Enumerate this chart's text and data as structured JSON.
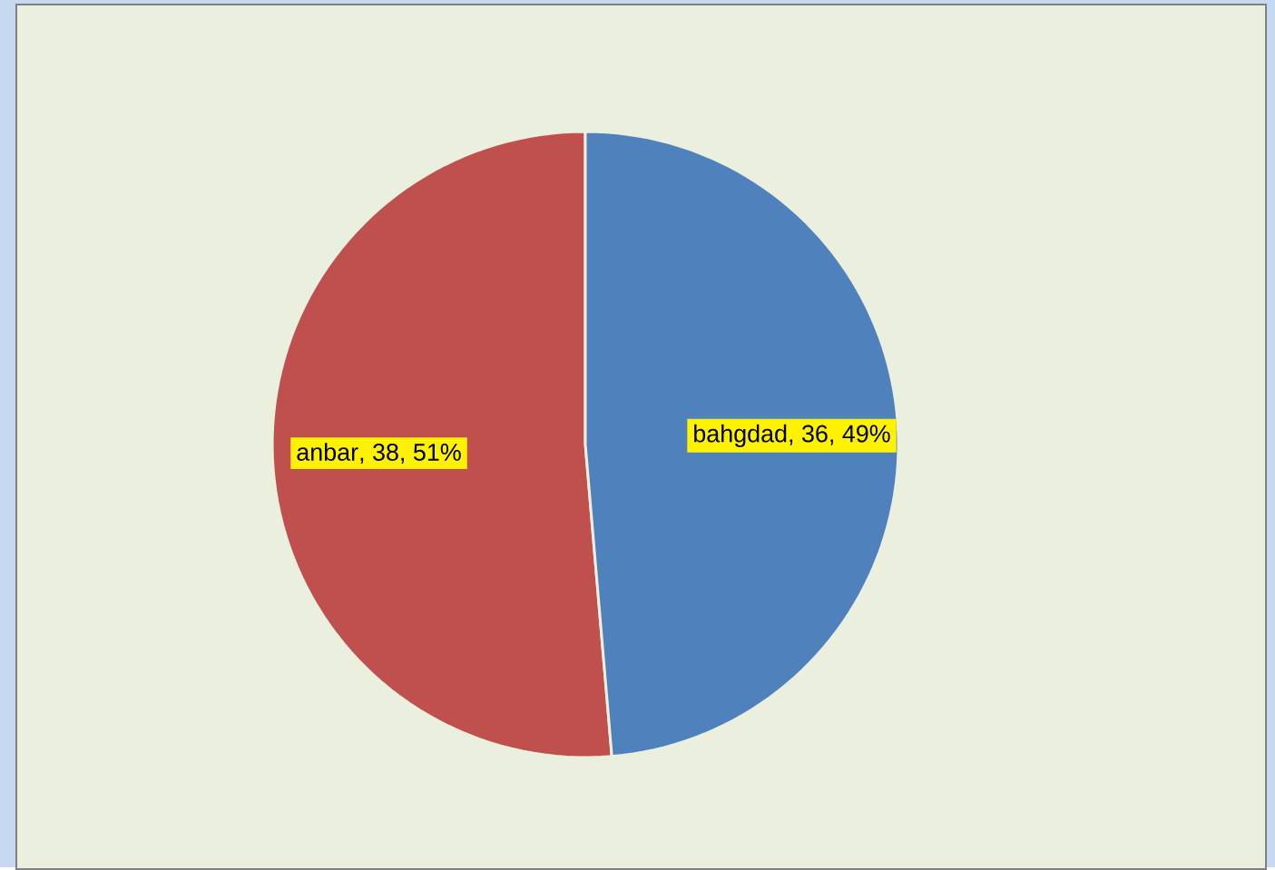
{
  "chart_data": {
    "type": "pie",
    "categories": [
      "anbar",
      "bahgdad"
    ],
    "values": [
      38,
      36
    ],
    "colors": [
      "#c0504d",
      "#4f81bd"
    ],
    "value_labels": [
      ", 38, 51%",
      ", 36, 49%"
    ]
  }
}
